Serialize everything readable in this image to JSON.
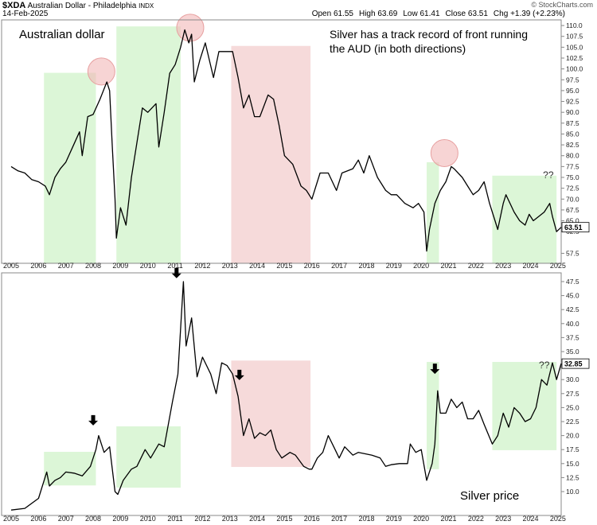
{
  "header": {
    "symbol": "$XDA",
    "name": "Australian Dollar - Philadelphia",
    "exchange": "INDX",
    "date": "14-Feb-2025",
    "credit": "© StockCharts.com",
    "quote": [
      {
        "label": "Open",
        "value": 61.55
      },
      {
        "label": "High",
        "value": 63.69
      },
      {
        "label": "Low",
        "value": 61.41
      },
      {
        "label": "Close",
        "value": 63.51
      },
      {
        "label": "Chg",
        "value": "+1.39 (+2.23%)"
      }
    ]
  },
  "chart_data": [
    {
      "type": "line",
      "title": "Australian dollar",
      "annotations": [
        "Silver has a track record of front running",
        "the AUD (in both directions)"
      ],
      "color": "#000000",
      "last_value": 63.51,
      "x": [
        2005.0,
        2005.25,
        2005.5,
        2005.75,
        2006.0,
        2006.25,
        2006.4,
        2006.6,
        2006.8,
        2007.0,
        2007.25,
        2007.5,
        2007.6,
        2007.8,
        2008.0,
        2008.25,
        2008.5,
        2008.6,
        2008.7,
        2008.8,
        2008.85,
        2009.0,
        2009.2,
        2009.4,
        2009.6,
        2009.8,
        2010.0,
        2010.3,
        2010.4,
        2010.6,
        2010.8,
        2011.0,
        2011.2,
        2011.35,
        2011.5,
        2011.6,
        2011.7,
        2011.9,
        2012.1,
        2012.4,
        2012.6,
        2012.9,
        2013.1,
        2013.3,
        2013.5,
        2013.7,
        2013.9,
        2014.1,
        2014.4,
        2014.6,
        2014.8,
        2015.0,
        2015.3,
        2015.6,
        2015.8,
        2016.0,
        2016.3,
        2016.6,
        2016.9,
        2017.1,
        2017.5,
        2017.7,
        2017.9,
        2018.1,
        2018.4,
        2018.7,
        2018.9,
        2019.1,
        2019.4,
        2019.7,
        2019.9,
        2020.1,
        2020.2,
        2020.3,
        2020.5,
        2020.7,
        2020.9,
        2021.1,
        2021.2,
        2021.5,
        2021.7,
        2021.9,
        2022.1,
        2022.3,
        2022.5,
        2022.7,
        2022.8,
        2023.0,
        2023.1,
        2023.4,
        2023.6,
        2023.8,
        2023.95,
        2024.1,
        2024.3,
        2024.5,
        2024.7,
        2024.8,
        2024.95,
        2025.12
      ],
      "values": [
        77.5,
        76.5,
        76,
        74.5,
        74,
        73,
        71,
        75,
        77,
        78.5,
        82,
        85.5,
        80,
        89,
        89.5,
        93,
        97,
        95,
        82,
        70,
        61,
        68,
        64,
        75,
        83,
        91,
        90,
        92,
        82,
        90,
        99,
        101,
        105,
        109,
        106,
        108,
        97,
        102,
        106,
        98,
        104,
        104,
        104,
        98,
        91,
        94,
        89,
        89,
        94,
        93,
        87,
        80,
        78,
        73,
        72,
        70,
        76,
        76,
        72,
        76,
        77,
        79,
        76,
        80,
        75,
        72,
        71,
        71,
        69,
        68,
        69,
        67,
        58,
        63,
        69,
        72,
        74,
        77.5,
        77,
        75,
        73,
        71,
        72,
        74,
        69,
        65,
        63,
        69,
        71,
        67,
        65,
        64,
        66.5,
        65,
        66,
        67,
        69,
        66,
        62.5,
        63.51
      ],
      "xlim": [
        2004.65,
        2025.12
      ],
      "xticks": [
        2005,
        2006,
        2007,
        2008,
        2009,
        2010,
        2011,
        2012,
        2013,
        2014,
        2015,
        2016,
        2017,
        2018,
        2019,
        2020,
        2021,
        2022,
        2023,
        2024,
        2025
      ],
      "ylim": [
        55.2,
        111.3
      ],
      "yticks": [
        57.5,
        62.5,
        {
          "value": 65,
          "label": "65.0"
        },
        67.5,
        {
          "value": 70,
          "label": "70.0"
        },
        72.5,
        {
          "value": 75,
          "label": "75.0"
        },
        77.5,
        {
          "value": 80,
          "label": "80.0"
        },
        82.5,
        {
          "value": 85,
          "label": "85.0"
        },
        87.5,
        {
          "value": 90,
          "label": "90.0"
        },
        92.5,
        {
          "value": 95,
          "label": "95.0"
        },
        97.5,
        {
          "value": 100,
          "label": "100.0"
        },
        102.5,
        {
          "value": 105,
          "label": "105.0"
        },
        107.5,
        {
          "value": 110,
          "label": "110.0"
        }
      ],
      "regions": [
        {
          "x": [
            2006.2,
            2008.1
          ],
          "y": [
            55.2,
            99.1
          ],
          "color": "#d6f5d0"
        },
        {
          "x": [
            2008.85,
            2011.2
          ],
          "y": [
            55.2,
            109.8
          ],
          "color": "#d6f5d0"
        },
        {
          "x": [
            2013.05,
            2015.95
          ],
          "y": [
            55.2,
            105.3
          ],
          "color": "#f5d3d3"
        },
        {
          "x": [
            2020.2,
            2020.65
          ],
          "y": [
            55.2,
            78.5
          ],
          "color": "#d6f5d0"
        },
        {
          "x": [
            2022.6,
            2024.95
          ],
          "y": [
            55.2,
            75.4
          ],
          "color": "#d6f5d0"
        }
      ],
      "circles": [
        {
          "x": 2008.3,
          "y": 99.4
        },
        {
          "x": 2011.55,
          "y": 109.5
        },
        {
          "x": 2020.85,
          "y": 80.6
        }
      ],
      "notes": [
        {
          "text": "??",
          "x": 2024.65,
          "y": 74.8
        }
      ]
    },
    {
      "type": "line",
      "title": "Silver price",
      "color": "#000000",
      "last_value": 32.85,
      "x": [
        2005.0,
        2005.5,
        2006.0,
        2006.3,
        2006.4,
        2006.6,
        2006.8,
        2007.0,
        2007.3,
        2007.6,
        2007.9,
        2008.1,
        2008.2,
        2008.4,
        2008.6,
        2008.8,
        2008.9,
        2009.1,
        2009.4,
        2009.6,
        2009.9,
        2010.1,
        2010.4,
        2010.6,
        2010.9,
        2011.1,
        2011.3,
        2011.4,
        2011.6,
        2011.8,
        2012.0,
        2012.3,
        2012.5,
        2012.7,
        2012.9,
        2013.1,
        2013.3,
        2013.5,
        2013.7,
        2013.9,
        2014.1,
        2014.3,
        2014.5,
        2014.7,
        2014.9,
        2015.2,
        2015.4,
        2015.7,
        2015.9,
        2016.0,
        2016.2,
        2016.4,
        2016.6,
        2016.8,
        2017.0,
        2017.2,
        2017.5,
        2017.7,
        2017.9,
        2018.2,
        2018.5,
        2018.7,
        2018.9,
        2019.2,
        2019.5,
        2019.6,
        2019.8,
        2020.0,
        2020.2,
        2020.4,
        2020.5,
        2020.6,
        2020.7,
        2020.9,
        2021.1,
        2021.3,
        2021.5,
        2021.7,
        2021.9,
        2022.1,
        2022.3,
        2022.6,
        2022.8,
        2023.0,
        2023.2,
        2023.4,
        2023.6,
        2023.8,
        2024.0,
        2024.2,
        2024.4,
        2024.6,
        2024.8,
        2024.95,
        2025.12
      ],
      "values": [
        6.7,
        7.0,
        8.8,
        13.5,
        11,
        12,
        12.5,
        13.5,
        13.3,
        12.8,
        14.5,
        17.5,
        20,
        17,
        18,
        10,
        9.5,
        12,
        14,
        14.5,
        17.5,
        16,
        18.5,
        18,
        26,
        31,
        47.5,
        36,
        41,
        30.5,
        34,
        31,
        27.5,
        33,
        32.5,
        31,
        27,
        20,
        23,
        19.5,
        20.5,
        20,
        21,
        17.5,
        16,
        17,
        16.5,
        14.5,
        14,
        14,
        16,
        17,
        20,
        18,
        16,
        18,
        16.5,
        17,
        16.8,
        16.5,
        16,
        14.5,
        14.8,
        15,
        15,
        18.5,
        17,
        17.5,
        12,
        15,
        18.5,
        28,
        24,
        24,
        26.5,
        25,
        26,
        23,
        23,
        24.5,
        22,
        18.5,
        20,
        24,
        21.5,
        25,
        24,
        22.5,
        23,
        25,
        30,
        29,
        33,
        30,
        32.85
      ],
      "xlim": [
        2004.65,
        2025.12
      ],
      "xticks": [
        2005,
        2006,
        2007,
        2008,
        2009,
        2010,
        2011,
        2012,
        2013,
        2014,
        2015,
        2016,
        2017,
        2018,
        2019,
        2020,
        2021,
        2022,
        2023,
        2024,
        2025
      ],
      "ylim": [
        5.74,
        49.06
      ],
      "yticks": [
        {
          "value": 10,
          "label": "10.0"
        },
        12.5,
        {
          "value": 15,
          "label": "15.0"
        },
        17.5,
        {
          "value": 20,
          "label": "20.0"
        },
        22.5,
        {
          "value": 25,
          "label": "25.0"
        },
        27.5,
        {
          "value": 30,
          "label": "30.0"
        },
        32.5,
        {
          "value": 35,
          "label": "35.0"
        },
        37.5,
        {
          "value": 40,
          "label": "40.0"
        },
        42.5,
        {
          "value": 45,
          "label": "45.0"
        },
        47.5
      ],
      "regions": [
        {
          "x": [
            2006.2,
            2008.1
          ],
          "y": [
            11.1,
            17.1
          ],
          "color": "#d6f5d0"
        },
        {
          "x": [
            2008.85,
            2011.2
          ],
          "y": [
            10.7,
            21.65
          ],
          "color": "#d6f5d0"
        },
        {
          "x": [
            2013.05,
            2015.95
          ],
          "y": [
            14.4,
            33.4
          ],
          "color": "#f5d3d3"
        },
        {
          "x": [
            2020.2,
            2020.65
          ],
          "y": [
            14.0,
            33.15
          ],
          "color": "#d6f5d0"
        },
        {
          "x": [
            2022.6,
            2024.95
          ],
          "y": [
            17.4,
            33.15
          ],
          "color": "#d6f5d0"
        }
      ],
      "arrows": [
        {
          "x": 2008.0,
          "y": 21.8
        },
        {
          "x": 2011.05,
          "y": 48.1
        },
        {
          "x": 2013.35,
          "y": 29.9
        },
        {
          "x": 2020.5,
          "y": 31.0
        }
      ],
      "notes": [
        {
          "text": "??",
          "x": 2024.5,
          "y": 32.0
        }
      ]
    }
  ]
}
